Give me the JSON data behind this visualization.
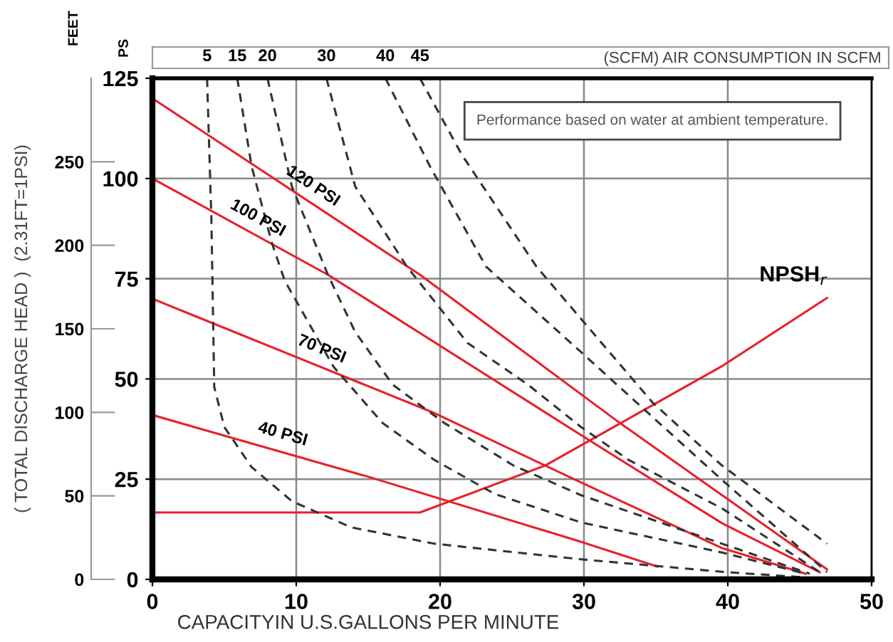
{
  "chart_data": {
    "type": "line",
    "xlabel": "CAPACITYIN U.S.GALLONS PER MINUTE",
    "ylabel": "PS",
    "y2label": "( TOTAL DISCHARGE HEAD )  (2.31FT=1PSI)",
    "x2label": "(SCFM) AIR CONSUMPTION IN SCFM",
    "annotations": [
      "FEET",
      "Performance based on water at ambient temperature."
    ],
    "xlim": [
      0,
      50
    ],
    "xticks": [
      0,
      10,
      20,
      30,
      40,
      50
    ],
    "ylim": [
      0,
      125
    ],
    "yticks": [
      0,
      25,
      50,
      75,
      100,
      125
    ],
    "y2lim": [
      0,
      300
    ],
    "y2ticks": [
      0,
      50,
      100,
      150,
      200,
      250
    ],
    "grid": true,
    "legend": false,
    "marker": "none",
    "series": [
      {
        "name": "120 PSI",
        "color": "#e8202a",
        "line_style": "solid",
        "x": [
          0,
          18.6,
          32.5,
          39.6,
          46.9
        ],
        "values": [
          120,
          76,
          39,
          21,
          2.5
        ]
      },
      {
        "name": "100 PSI",
        "color": "#e8202a",
        "line_style": "solid",
        "x": [
          0,
          12.2,
          30.5,
          39.6,
          46.4
        ],
        "values": [
          100,
          76,
          34.4,
          14,
          1.8
        ]
      },
      {
        "name": "70 PSI",
        "color": "#e8202a",
        "line_style": "solid",
        "x": [
          0,
          19.6,
          29.3,
          39.6,
          45.4
        ],
        "values": [
          70,
          41.5,
          25,
          7.8,
          1.4
        ]
      },
      {
        "name": "40 PSI",
        "color": "#e8202a",
        "line_style": "solid",
        "x": [
          0,
          15.1,
          29.6,
          35.1
        ],
        "values": [
          41,
          25.5,
          9.6,
          3.2
        ]
      },
      {
        "name": "NPSH$_{r}$",
        "color": "#e8202a",
        "line_style": "solid",
        "x": [
          0,
          18.6,
          27.3,
          39.6,
          46.9
        ],
        "values": [
          16.7,
          16.7,
          28.4,
          53.2,
          70.2
        ]
      },
      {
        "name": "5",
        "color": "#333333",
        "line_style": "dashed",
        "x": [
          3.8,
          4.1,
          4.3,
          5,
          6.9,
          9.7,
          13.8,
          19.6,
          29.8,
          39.9,
          45.4
        ],
        "values": [
          125,
          90,
          48,
          38,
          28,
          19.5,
          13,
          8.9,
          5,
          1.8,
          0.5
        ]
      },
      {
        "name": "15",
        "color": "#333333",
        "line_style": "dashed",
        "x": [
          5.9,
          6.9,
          8.3,
          9.2,
          12.6,
          16,
          19.6,
          23.8,
          29.8,
          39.6,
          45.4
        ],
        "values": [
          125,
          103,
          84,
          74.5,
          53,
          39,
          29.8,
          21.3,
          14.2,
          6.7,
          1.4
        ]
      },
      {
        "name": "20",
        "color": "#333333",
        "line_style": "dashed",
        "x": [
          8,
          9.7,
          12.2,
          14.1,
          16.7,
          20.3,
          25.1,
          29.8,
          39.6,
          45.7
        ],
        "values": [
          125,
          98,
          76,
          61.7,
          48.6,
          39,
          28.4,
          21,
          8.9,
          1.4
        ]
      },
      {
        "name": "30",
        "color": "#333333",
        "line_style": "dashed",
        "x": [
          12.1,
          14.1,
          17.7,
          21.9,
          26.1,
          29.8,
          33.1,
          39.6,
          46.4
        ],
        "values": [
          125,
          98,
          78,
          59,
          48.6,
          38,
          29.8,
          17.7,
          1.8
        ]
      },
      {
        "name": "40",
        "color": "#333333",
        "line_style": "dashed",
        "x": [
          16.2,
          19.3,
          23.2,
          29.8,
          34.8,
          39.6,
          46.9
        ],
        "values": [
          125,
          103,
          78,
          56.7,
          40.4,
          24.8,
          1.8
        ]
      },
      {
        "name": "45",
        "color": "#333333",
        "line_style": "dashed",
        "x": [
          18.6,
          21.5,
          26.7,
          34.8,
          39.6,
          46.9
        ],
        "values": [
          125,
          106,
          78,
          44,
          28.4,
          8.9
        ]
      }
    ]
  }
}
